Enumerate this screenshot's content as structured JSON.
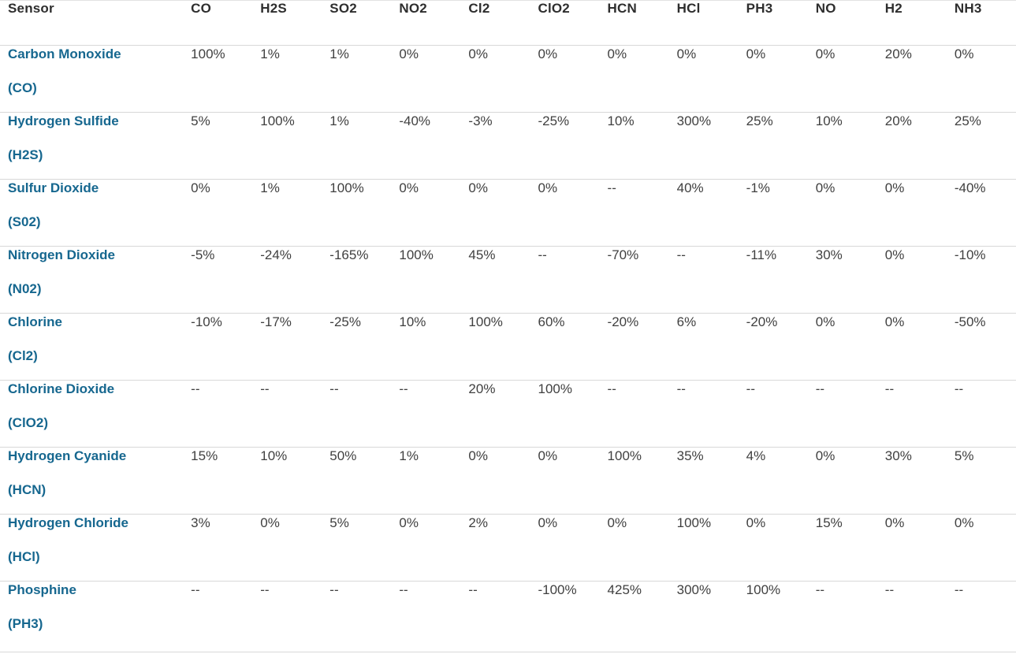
{
  "table": {
    "name": "sensor-cross-sensitivity-table",
    "columns": [
      "Sensor",
      "CO",
      "H2S",
      "SO2",
      "NO2",
      "Cl2",
      "ClO2",
      "HCN",
      "HCl",
      "PH3",
      "NO",
      "H2",
      "NH3"
    ],
    "rows": [
      {
        "name": "Carbon Monoxide",
        "formula": "(CO)",
        "values": [
          "100%",
          "1%",
          "1%",
          "0%",
          "0%",
          "0%",
          "0%",
          "0%",
          "0%",
          "0%",
          "20%",
          "0%"
        ]
      },
      {
        "name": "Hydrogen Sulfide",
        "formula": "(H2S)",
        "values": [
          "5%",
          "100%",
          "1%",
          "-40%",
          "-3%",
          "-25%",
          "10%",
          "300%",
          "25%",
          "10%",
          "20%",
          "25%"
        ]
      },
      {
        "name": "Sulfur Dioxide",
        "formula": "(S02)",
        "values": [
          "0%",
          "1%",
          "100%",
          "0%",
          "0%",
          "0%",
          "--",
          "40%",
          "-1%",
          "0%",
          "0%",
          "-40%"
        ]
      },
      {
        "name": "Nitrogen Dioxide",
        "formula": "(N02)",
        "values": [
          "-5%",
          "-24%",
          "-165%",
          "100%",
          "45%",
          "--",
          "-70%",
          "--",
          "-11%",
          "30%",
          "0%",
          "-10%"
        ]
      },
      {
        "name": "Chlorine",
        "formula": "(Cl2)",
        "values": [
          "-10%",
          "-17%",
          "-25%",
          "10%",
          "100%",
          "60%",
          "-20%",
          "6%",
          "-20%",
          "0%",
          "0%",
          "-50%"
        ]
      },
      {
        "name": "Chlorine Dioxide",
        "formula": "(ClO2)",
        "values": [
          "--",
          "--",
          "--",
          "--",
          "20%",
          "100%",
          "--",
          "--",
          "--",
          "--",
          "--",
          "--"
        ]
      },
      {
        "name": "Hydrogen Cyanide",
        "formula": "(HCN)",
        "values": [
          "15%",
          "10%",
          "50%",
          "1%",
          "0%",
          "0%",
          "100%",
          "35%",
          "4%",
          "0%",
          "30%",
          "5%"
        ]
      },
      {
        "name": "Hydrogen Chloride",
        "formula": "(HCl)",
        "values": [
          "3%",
          "0%",
          "5%",
          "0%",
          "2%",
          "0%",
          "0%",
          "100%",
          "0%",
          "15%",
          "0%",
          "0%"
        ]
      },
      {
        "name": "Phosphine",
        "formula": "(PH3)",
        "values": [
          "--",
          "--",
          "--",
          "--",
          "--",
          "-100%",
          "425%",
          "300%",
          "100%",
          "--",
          "--",
          "--"
        ]
      }
    ]
  },
  "colors": {
    "sensor_link": "#16678f",
    "header_text": "#2e2e2e",
    "cell_text": "#404040",
    "row_border": "#d8d8d8"
  },
  "layout": {
    "first_col_width": 232,
    "data_col_width": 88
  }
}
